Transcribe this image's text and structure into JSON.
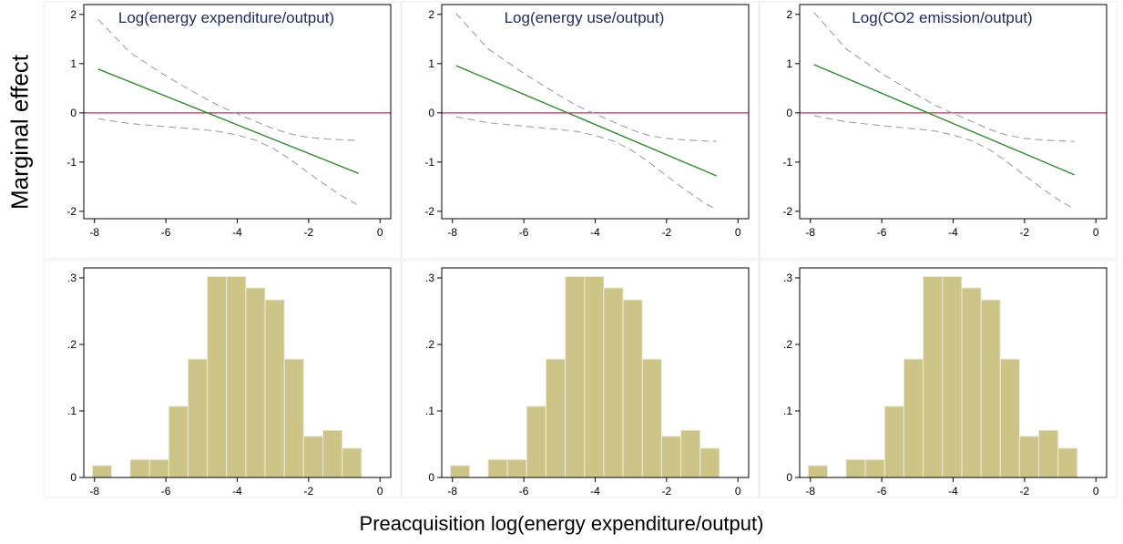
{
  "figure": {
    "ylabel": "Marginal effect",
    "xlabel": "Preacquisition log(energy expenditure/output)"
  },
  "chart_data": [
    {
      "type": "line",
      "title": "Log(energy expenditure/output)",
      "xlim": [
        -8.3,
        0.3
      ],
      "ylim": [
        -2.15,
        2.2
      ],
      "xticks": [
        -8,
        -6,
        -4,
        -2,
        0
      ],
      "yticks": [
        2,
        1,
        0,
        -1,
        -2
      ],
      "reference_line": 0,
      "series": [
        {
          "role": "estimate",
          "x": [
            -7.9,
            -0.6
          ],
          "y": [
            0.89,
            -1.23
          ]
        },
        {
          "role": "upper",
          "x": [
            -7.9,
            -7,
            -6,
            -5,
            -4.5,
            -4,
            -3.5,
            -3,
            -2.5,
            -2,
            -1.5,
            -1,
            -0.6
          ],
          "y": [
            1.9,
            1.22,
            0.75,
            0.33,
            0.14,
            -0.02,
            -0.17,
            -0.32,
            -0.43,
            -0.5,
            -0.53,
            -0.55,
            -0.56
          ]
        },
        {
          "role": "lower",
          "x": [
            -7.9,
            -7,
            -6,
            -5,
            -4.5,
            -4,
            -3.5,
            -3,
            -2.5,
            -2,
            -1.5,
            -1,
            -0.6
          ],
          "y": [
            -0.12,
            -0.22,
            -0.28,
            -0.34,
            -0.38,
            -0.45,
            -0.55,
            -0.72,
            -0.95,
            -1.22,
            -1.48,
            -1.72,
            -1.88
          ]
        }
      ]
    },
    {
      "type": "line",
      "title": "Log(energy use/output)",
      "xlim": [
        -8.3,
        0.3
      ],
      "ylim": [
        -2.15,
        2.2
      ],
      "xticks": [
        -8,
        -6,
        -4,
        -2,
        0
      ],
      "yticks": [
        2,
        1,
        0,
        -1,
        -2
      ],
      "reference_line": 0,
      "series": [
        {
          "role": "estimate",
          "x": [
            -7.9,
            -0.6
          ],
          "y": [
            0.96,
            -1.28
          ]
        },
        {
          "role": "upper",
          "x": [
            -7.9,
            -7,
            -6,
            -5,
            -4.5,
            -4,
            -3.5,
            -3,
            -2.5,
            -2,
            -1.5,
            -1,
            -0.6
          ],
          "y": [
            2.02,
            1.3,
            0.8,
            0.35,
            0.14,
            -0.02,
            -0.18,
            -0.34,
            -0.46,
            -0.52,
            -0.55,
            -0.57,
            -0.58
          ]
        },
        {
          "role": "lower",
          "x": [
            -7.9,
            -7,
            -6,
            -5,
            -4.5,
            -4,
            -3.5,
            -3,
            -2.5,
            -2,
            -1.5,
            -1,
            -0.6
          ],
          "y": [
            -0.08,
            -0.2,
            -0.27,
            -0.34,
            -0.38,
            -0.46,
            -0.57,
            -0.75,
            -1.0,
            -1.28,
            -1.55,
            -1.8,
            -1.97
          ]
        }
      ]
    },
    {
      "type": "line",
      "title": "Log(CO2 emission/output)",
      "xlim": [
        -8.3,
        0.3
      ],
      "ylim": [
        -2.15,
        2.2
      ],
      "xticks": [
        -8,
        -6,
        -4,
        -2,
        0
      ],
      "yticks": [
        2,
        1,
        0,
        -1,
        -2
      ],
      "reference_line": 0,
      "series": [
        {
          "role": "estimate",
          "x": [
            -7.9,
            -0.6
          ],
          "y": [
            0.98,
            -1.26
          ]
        },
        {
          "role": "upper",
          "x": [
            -7.9,
            -7,
            -6,
            -5,
            -4.5,
            -4,
            -3.5,
            -3,
            -2.5,
            -2,
            -1.5,
            -1,
            -0.6
          ],
          "y": [
            2.04,
            1.3,
            0.8,
            0.36,
            0.15,
            -0.01,
            -0.17,
            -0.33,
            -0.45,
            -0.52,
            -0.55,
            -0.57,
            -0.58
          ]
        },
        {
          "role": "lower",
          "x": [
            -7.9,
            -7,
            -6,
            -5,
            -4.5,
            -4,
            -3.5,
            -3,
            -2.5,
            -2,
            -1.5,
            -1,
            -0.6
          ],
          "y": [
            -0.06,
            -0.18,
            -0.26,
            -0.33,
            -0.37,
            -0.45,
            -0.56,
            -0.74,
            -0.99,
            -1.27,
            -1.54,
            -1.79,
            -1.95
          ]
        }
      ]
    },
    {
      "type": "bar",
      "xlim": [
        -8.3,
        0.3
      ],
      "ylim": [
        0,
        0.315
      ],
      "xticks": [
        -8,
        -6,
        -4,
        -2,
        0
      ],
      "yticks": [
        0.3,
        0.2,
        0.1,
        0
      ],
      "ytick_labels": [
        ".3",
        ".2",
        ".1",
        "0"
      ],
      "bins": [
        {
          "x0": -8.06,
          "x1": -7.52,
          "value": 0.018
        },
        {
          "x0": -7.0,
          "x1": -6.46,
          "value": 0.027
        },
        {
          "x0": -6.46,
          "x1": -5.92,
          "value": 0.027
        },
        {
          "x0": -5.92,
          "x1": -5.38,
          "value": 0.107
        },
        {
          "x0": -5.38,
          "x1": -4.84,
          "value": 0.178
        },
        {
          "x0": -4.84,
          "x1": -4.3,
          "value": 0.302
        },
        {
          "x0": -4.3,
          "x1": -3.76,
          "value": 0.302
        },
        {
          "x0": -3.76,
          "x1": -3.22,
          "value": 0.285
        },
        {
          "x0": -3.22,
          "x1": -2.68,
          "value": 0.267
        },
        {
          "x0": -2.68,
          "x1": -2.14,
          "value": 0.178
        },
        {
          "x0": -2.14,
          "x1": -1.6,
          "value": 0.062
        },
        {
          "x0": -1.6,
          "x1": -1.06,
          "value": 0.071
        },
        {
          "x0": -1.06,
          "x1": -0.52,
          "value": 0.044
        }
      ]
    },
    {
      "type": "bar",
      "xlim": [
        -8.3,
        0.3
      ],
      "ylim": [
        0,
        0.315
      ],
      "xticks": [
        -8,
        -6,
        -4,
        -2,
        0
      ],
      "yticks": [
        0.3,
        0.2,
        0.1,
        0
      ],
      "ytick_labels": [
        ".3",
        ".2",
        ".1",
        "0"
      ],
      "bins": [
        {
          "x0": -8.06,
          "x1": -7.52,
          "value": 0.018
        },
        {
          "x0": -7.0,
          "x1": -6.46,
          "value": 0.027
        },
        {
          "x0": -6.46,
          "x1": -5.92,
          "value": 0.027
        },
        {
          "x0": -5.92,
          "x1": -5.38,
          "value": 0.107
        },
        {
          "x0": -5.38,
          "x1": -4.84,
          "value": 0.178
        },
        {
          "x0": -4.84,
          "x1": -4.3,
          "value": 0.302
        },
        {
          "x0": -4.3,
          "x1": -3.76,
          "value": 0.302
        },
        {
          "x0": -3.76,
          "x1": -3.22,
          "value": 0.285
        },
        {
          "x0": -3.22,
          "x1": -2.68,
          "value": 0.267
        },
        {
          "x0": -2.68,
          "x1": -2.14,
          "value": 0.178
        },
        {
          "x0": -2.14,
          "x1": -1.6,
          "value": 0.062
        },
        {
          "x0": -1.6,
          "x1": -1.06,
          "value": 0.071
        },
        {
          "x0": -1.06,
          "x1": -0.52,
          "value": 0.044
        }
      ]
    },
    {
      "type": "bar",
      "xlim": [
        -8.3,
        0.3
      ],
      "ylim": [
        0,
        0.315
      ],
      "xticks": [
        -8,
        -6,
        -4,
        -2,
        0
      ],
      "yticks": [
        0.3,
        0.2,
        0.1,
        0
      ],
      "ytick_labels": [
        ".3",
        ".2",
        ".1",
        "0"
      ],
      "bins": [
        {
          "x0": -8.06,
          "x1": -7.52,
          "value": 0.018
        },
        {
          "x0": -7.0,
          "x1": -6.46,
          "value": 0.027
        },
        {
          "x0": -6.46,
          "x1": -5.92,
          "value": 0.027
        },
        {
          "x0": -5.92,
          "x1": -5.38,
          "value": 0.107
        },
        {
          "x0": -5.38,
          "x1": -4.84,
          "value": 0.178
        },
        {
          "x0": -4.84,
          "x1": -4.3,
          "value": 0.302
        },
        {
          "x0": -4.3,
          "x1": -3.76,
          "value": 0.302
        },
        {
          "x0": -3.76,
          "x1": -3.22,
          "value": 0.285
        },
        {
          "x0": -3.22,
          "x1": -2.68,
          "value": 0.267
        },
        {
          "x0": -2.68,
          "x1": -2.14,
          "value": 0.178
        },
        {
          "x0": -2.14,
          "x1": -1.6,
          "value": 0.062
        },
        {
          "x0": -1.6,
          "x1": -1.06,
          "value": 0.071
        },
        {
          "x0": -1.06,
          "x1": -0.52,
          "value": 0.044
        }
      ]
    }
  ],
  "colors": {
    "estimate": "#2e8b2e",
    "ci": "#a0a0a8",
    "reference": "#d0285a",
    "bar_fill": "#cdc488",
    "bar_edge": "#eeeadb",
    "title": "#1f2a5a",
    "frame_outer": "#e8ecf2",
    "axis": "#000000"
  }
}
